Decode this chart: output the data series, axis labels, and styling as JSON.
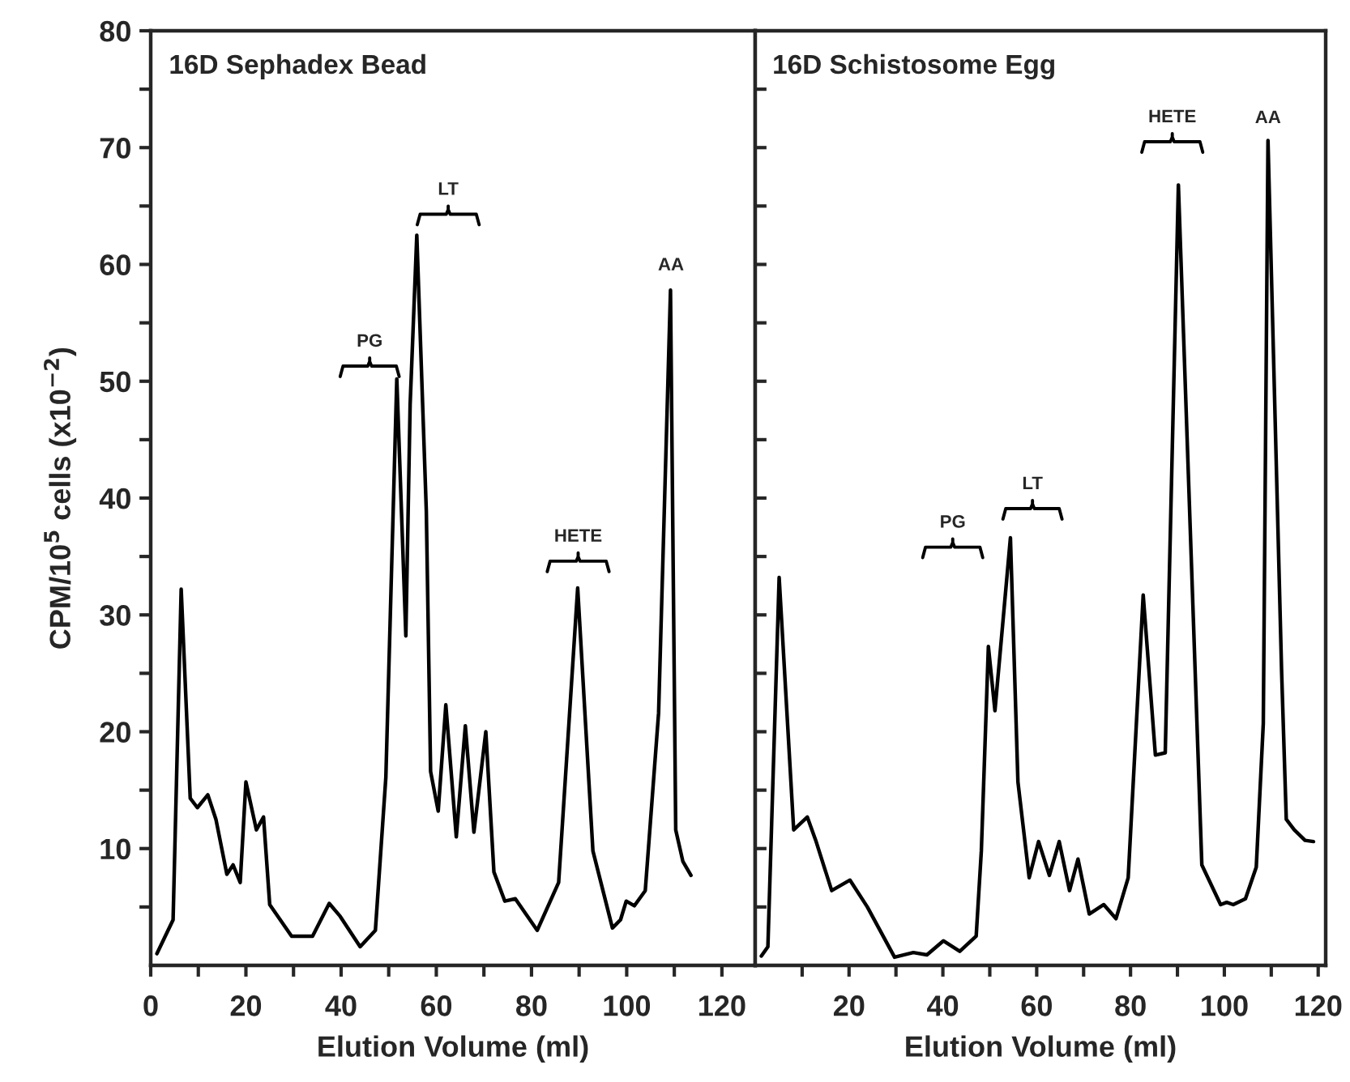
{
  "chart_data": [
    {
      "type": "line",
      "title": "16D Sephadex Bead",
      "xlabel": "Elution Volume (ml)",
      "ylabel": "CPM/10$^{5}$ cells (x10$^{−2}$)",
      "xlim": [
        0,
        127
      ],
      "ylim": [
        0,
        80
      ],
      "xticks": [
        0,
        {
          "value": 10,
          "label": null
        },
        20,
        {
          "value": 30,
          "label": null
        },
        40,
        {
          "value": 50,
          "label": null
        },
        60,
        {
          "value": 70,
          "label": null
        },
        80,
        {
          "value": 90,
          "label": null
        },
        100,
        {
          "value": 110,
          "label": null
        },
        120
      ],
      "yticks": [
        {
          "value": 5,
          "label": null
        },
        10,
        {
          "value": 15,
          "label": null
        },
        20,
        {
          "value": 25,
          "label": null
        },
        30,
        {
          "value": 35,
          "label": null
        },
        40,
        {
          "value": 45,
          "label": null
        },
        50,
        {
          "value": 55,
          "label": null
        },
        60,
        {
          "value": 65,
          "label": null
        },
        70,
        {
          "value": 75,
          "label": null
        },
        80
      ],
      "series": [
        {
          "color": "#000000",
          "x": [
            1.3,
            4.7,
            6.4,
            8.3,
            9.8,
            12,
            13.7,
            16,
            17.3,
            18.8,
            20,
            22.2,
            23.7,
            25,
            29.6,
            34,
            37.5,
            39.8,
            44,
            47.2,
            49.4,
            51.7,
            53.6,
            54.5,
            55.9,
            57.9,
            58.8,
            60.4,
            62,
            64.2,
            66.1,
            67.9,
            70.4,
            72.1,
            74.4,
            76.6,
            81.2,
            85.7,
            89.7,
            92.9,
            97,
            98.7,
            99.9,
            101.6,
            103.9,
            106.7,
            109.2,
            110.3,
            111.8,
            113.5
          ],
          "values": [
            1.0,
            3.9,
            32.2,
            14.3,
            13.5,
            14.6,
            12.5,
            7.8,
            8.6,
            7.1,
            15.7,
            11.6,
            12.7,
            5.2,
            2.5,
            2.5,
            5.3,
            4.2,
            1.6,
            3,
            16.1,
            50.2,
            28.2,
            48,
            62.5,
            38.9,
            16.6,
            13.2,
            22.3,
            11,
            20.5,
            11.4,
            20,
            8,
            5.5,
            5.7,
            3,
            7.1,
            32.3,
            9.8,
            3.2,
            3.9,
            5.5,
            5.1,
            6.4,
            21.6,
            57.8,
            11.6,
            8.9,
            7.7
          ]
        }
      ],
      "annotations": [
        {
          "text": "PG",
          "x": 46,
          "y": 51.3
        },
        {
          "text": "LT",
          "x": 62.5,
          "y": 64.3
        },
        {
          "text": "HETE",
          "x": 89.8,
          "y": 34.6
        },
        {
          "text": "AA",
          "x": 109.3,
          "y": 58.6
        }
      ]
    },
    {
      "type": "line",
      "title": "16D Schistosome Egg",
      "xlabel": "Elution Volume (ml)",
      "xlim": [
        0,
        121.6
      ],
      "ylim": [
        0,
        80
      ],
      "tick_labels": "x",
      "xticks": [
        {
          "value": 10,
          "label": null
        },
        20,
        {
          "value": 30,
          "label": null
        },
        40,
        {
          "value": 50,
          "label": null
        },
        60,
        {
          "value": 70,
          "label": null
        },
        80,
        {
          "value": 90,
          "label": null
        },
        100,
        {
          "value": 110,
          "label": null
        },
        120
      ],
      "yticks": [
        5,
        10,
        15,
        20,
        25,
        30,
        35,
        40,
        45,
        50,
        55,
        60,
        65,
        70,
        75
      ],
      "series": [
        {
          "color": "#000000",
          "x": [
            1.3,
            2.7,
            5.1,
            8.2,
            11.1,
            12.9,
            16.3,
            20.2,
            23.9,
            29.7,
            33.7,
            36.6,
            40.1,
            43.6,
            47.1,
            48.2,
            49.7,
            51.1,
            54.4,
            56,
            58.4,
            60.4,
            62.7,
            64.8,
            67,
            68.8,
            71.2,
            74.3,
            76.9,
            79.5,
            82.7,
            85.3,
            87.4,
            90.2,
            95.2,
            99.2,
            100.5,
            101.9,
            104.5,
            106.8,
            108.3,
            109.3,
            112.2,
            113.2,
            114.9,
            117.2,
            119
          ],
          "values": [
            0.8,
            1.6,
            33.2,
            11.6,
            12.7,
            10.7,
            6.4,
            7.3,
            5,
            0.7,
            1.1,
            0.9,
            2.1,
            1.2,
            2.5,
            9.8,
            27.3,
            21.8,
            36.6,
            15.7,
            7.5,
            10.6,
            7.7,
            10.6,
            6.4,
            9.1,
            4.4,
            5.2,
            4,
            7.5,
            31.7,
            18,
            18.2,
            66.8,
            8.6,
            5.2,
            5.4,
            5.2,
            5.7,
            8.4,
            20.7,
            70.6,
            25.2,
            12.5,
            11.6,
            10.7,
            10.6
          ]
        }
      ],
      "annotations": [
        {
          "text": "PG",
          "x": 42.1,
          "y": 35.8
        },
        {
          "text": "LT",
          "x": 59.1,
          "y": 39.1
        },
        {
          "text": "HETE",
          "x": 88.9,
          "y": 70.5
        },
        {
          "text": "AA",
          "x": 109.3,
          "y": 71.2
        }
      ]
    }
  ]
}
